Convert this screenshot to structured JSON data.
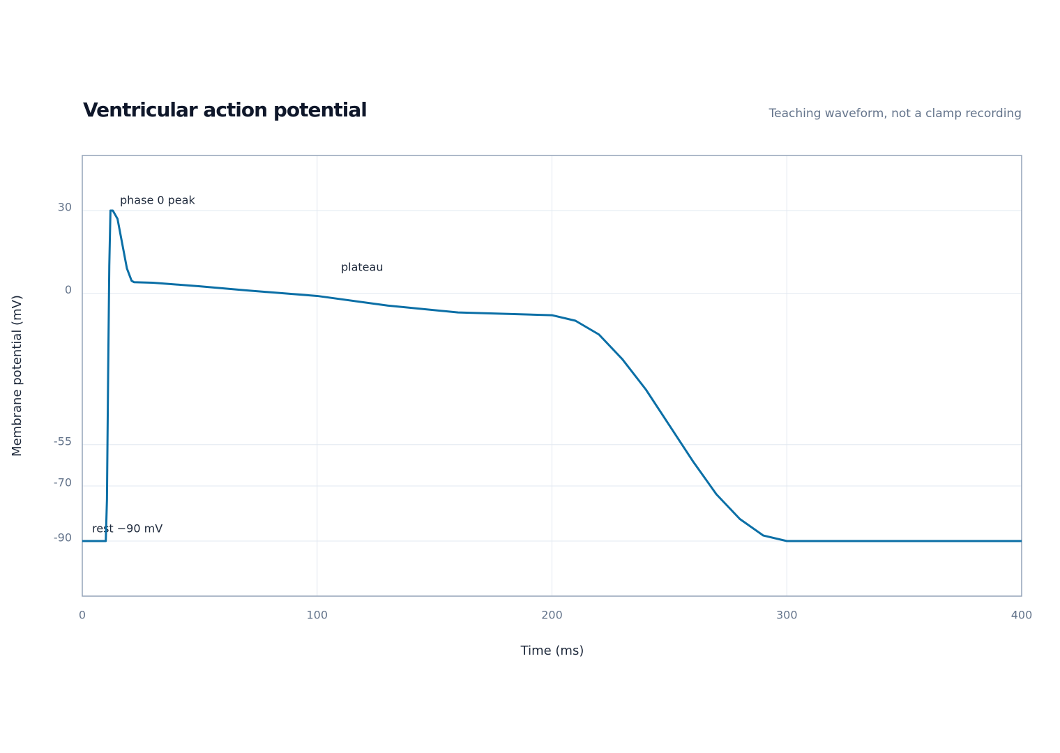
{
  "chart_data": {
    "type": "line",
    "title": "Ventricular action potential",
    "subtitle": "Teaching waveform, not a clamp recording",
    "x_label": "Time (ms)",
    "y_label": "Membrane potential (mV)",
    "annotations": [
      "phase 0 peak",
      "plateau",
      "rest −90 mV"
    ],
    "x": [
      0,
      10,
      10.5,
      11,
      11.5,
      12,
      13,
      15,
      17,
      19,
      21,
      22,
      30,
      50,
      70,
      100,
      130,
      160,
      200,
      210,
      220,
      230,
      240,
      250,
      260,
      270,
      280,
      290,
      300,
      400
    ],
    "series": [
      {
        "name": "Membrane potential",
        "color": "#0b6fa6",
        "values": [
          -90,
          -90,
          -75,
          -30,
          10,
          30,
          30,
          27,
          18,
          9,
          4.5,
          4,
          3.8,
          2.5,
          1,
          -1,
          -4.5,
          -7,
          -8,
          -10,
          -15,
          -24,
          -35,
          -48,
          -61,
          -73,
          -82,
          -88,
          -90,
          -90
        ]
      }
    ],
    "xlim": [
      0,
      400
    ],
    "xticks": [
      0,
      100,
      200,
      300,
      400
    ],
    "ylim": [
      -110,
      50
    ],
    "yticks": [
      30,
      0,
      -55,
      -70,
      -90
    ],
    "grid": true
  }
}
